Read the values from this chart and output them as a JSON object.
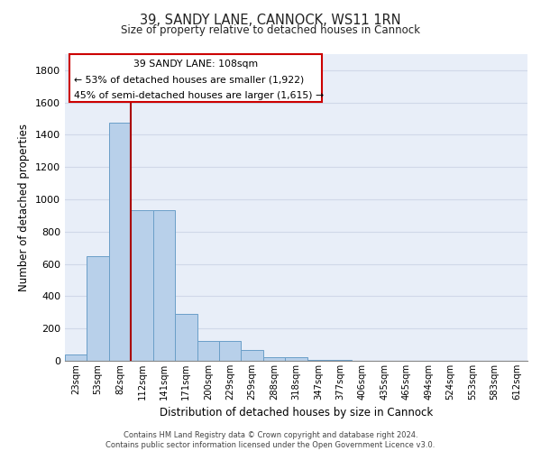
{
  "title_line1": "39, SANDY LANE, CANNOCK, WS11 1RN",
  "title_line2": "Size of property relative to detached houses in Cannock",
  "xlabel": "Distribution of detached houses by size in Cannock",
  "ylabel": "Number of detached properties",
  "footer_line1": "Contains HM Land Registry data © Crown copyright and database right 2024.",
  "footer_line2": "Contains public sector information licensed under the Open Government Licence v3.0.",
  "categories": [
    "23sqm",
    "53sqm",
    "82sqm",
    "112sqm",
    "141sqm",
    "171sqm",
    "200sqm",
    "229sqm",
    "259sqm",
    "288sqm",
    "318sqm",
    "347sqm",
    "377sqm",
    "406sqm",
    "435sqm",
    "465sqm",
    "494sqm",
    "524sqm",
    "553sqm",
    "583sqm",
    "612sqm"
  ],
  "values": [
    40,
    650,
    1475,
    935,
    935,
    290,
    125,
    125,
    65,
    25,
    20,
    5,
    5,
    0,
    0,
    0,
    0,
    0,
    0,
    0,
    0
  ],
  "bar_color": "#b8d0ea",
  "bar_edge_color": "#6a9fc8",
  "grid_color": "#d0d8e8",
  "bg_color": "#e8eef8",
  "property_sqm": 108,
  "annotation_text_line1": "39 SANDY LANE: 108sqm",
  "annotation_text_line2": "← 53% of detached houses are smaller (1,922)",
  "annotation_text_line3": "45% of semi-detached houses are larger (1,615) →",
  "vline_color": "#aa0000",
  "annotation_box_color": "#ffffff",
  "annotation_box_edge": "#cc0000",
  "ylim": [
    0,
    1900
  ],
  "yticks": [
    0,
    200,
    400,
    600,
    800,
    1000,
    1200,
    1400,
    1600,
    1800
  ]
}
